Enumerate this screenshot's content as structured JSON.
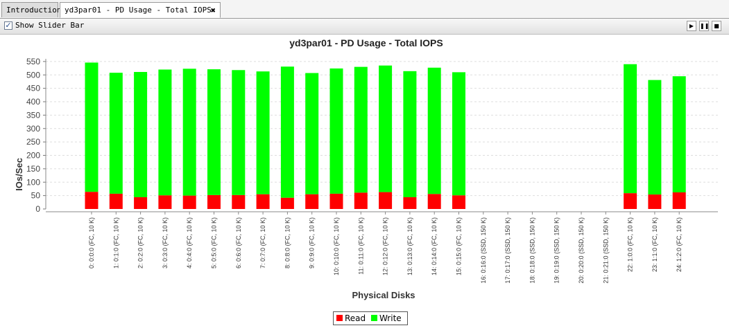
{
  "tabs": [
    {
      "label": "Introduction"
    },
    {
      "label": "yd3par01 - PD Usage - Total IOPS",
      "close": "✖"
    }
  ],
  "toolbar": {
    "slider_label": "Show Slider Bar",
    "slider_checked": "✓",
    "play": "▶",
    "pause": "❚❚",
    "stop": "■"
  },
  "colors": {
    "read": "#ff0000",
    "write": "#00ff00"
  },
  "chart_data": {
    "type": "bar",
    "stacked": true,
    "title": "yd3par01 - PD Usage - Total IOPS",
    "xlabel": "Physical Disks",
    "ylabel": "IOs/Sec",
    "ylim": [
      0,
      560
    ],
    "yticks": [
      0,
      50,
      100,
      150,
      200,
      250,
      300,
      350,
      400,
      450,
      500,
      550
    ],
    "grid": true,
    "legend_position": "bottom",
    "categories": [
      "0: 0:0:0 (FC, 10 K)",
      "1: 0:1:0 (FC, 10 K)",
      "2: 0:2:0 (FC, 10 K)",
      "3: 0:3:0 (FC, 10 K)",
      "4: 0:4:0 (FC, 10 K)",
      "5: 0:5:0 (FC, 10 K)",
      "6: 0:6:0 (FC, 10 K)",
      "7: 0:7:0 (FC, 10 K)",
      "8: 0:8:0 (FC, 10 K)",
      "9: 0:9:0 (FC, 10 K)",
      "10: 0:10:0 (FC, 10 K)",
      "11: 0:11:0 (FC, 10 K)",
      "12: 0:12:0 (FC, 10 K)",
      "13: 0:13:0 (FC, 10 K)",
      "14: 0:14:0 (FC, 10 K)",
      "15: 0:15:0 (FC, 10 K)",
      "16: 0:16:0 (SSD, 150 K)",
      "17: 0:17:0 (SSD, 150 K)",
      "18: 0:18:0 (SSD, 150 K)",
      "19: 0:19:0 (SSD, 150 K)",
      "20: 0:20:0 (SSD, 150 K)",
      "21: 0:21:0 (SSD, 150 K)",
      "22: 1:0:0 (FC, 10 K)",
      "23: 1:1:0 (FC, 10 K)",
      "24: 1:2:0 (FC, 10 K)"
    ],
    "series": [
      {
        "name": "Read",
        "values": [
          64,
          57,
          44,
          51,
          50,
          52,
          52,
          55,
          42,
          55,
          57,
          61,
          63,
          44,
          56,
          51,
          0,
          0,
          0,
          0,
          0,
          0,
          59,
          54,
          62
        ]
      },
      {
        "name": "Write",
        "values": [
          482,
          451,
          467,
          469,
          473,
          469,
          466,
          458,
          489,
          452,
          467,
          469,
          472,
          470,
          471,
          459,
          0,
          0,
          0,
          0,
          0,
          0,
          481,
          427,
          433
        ]
      }
    ]
  }
}
